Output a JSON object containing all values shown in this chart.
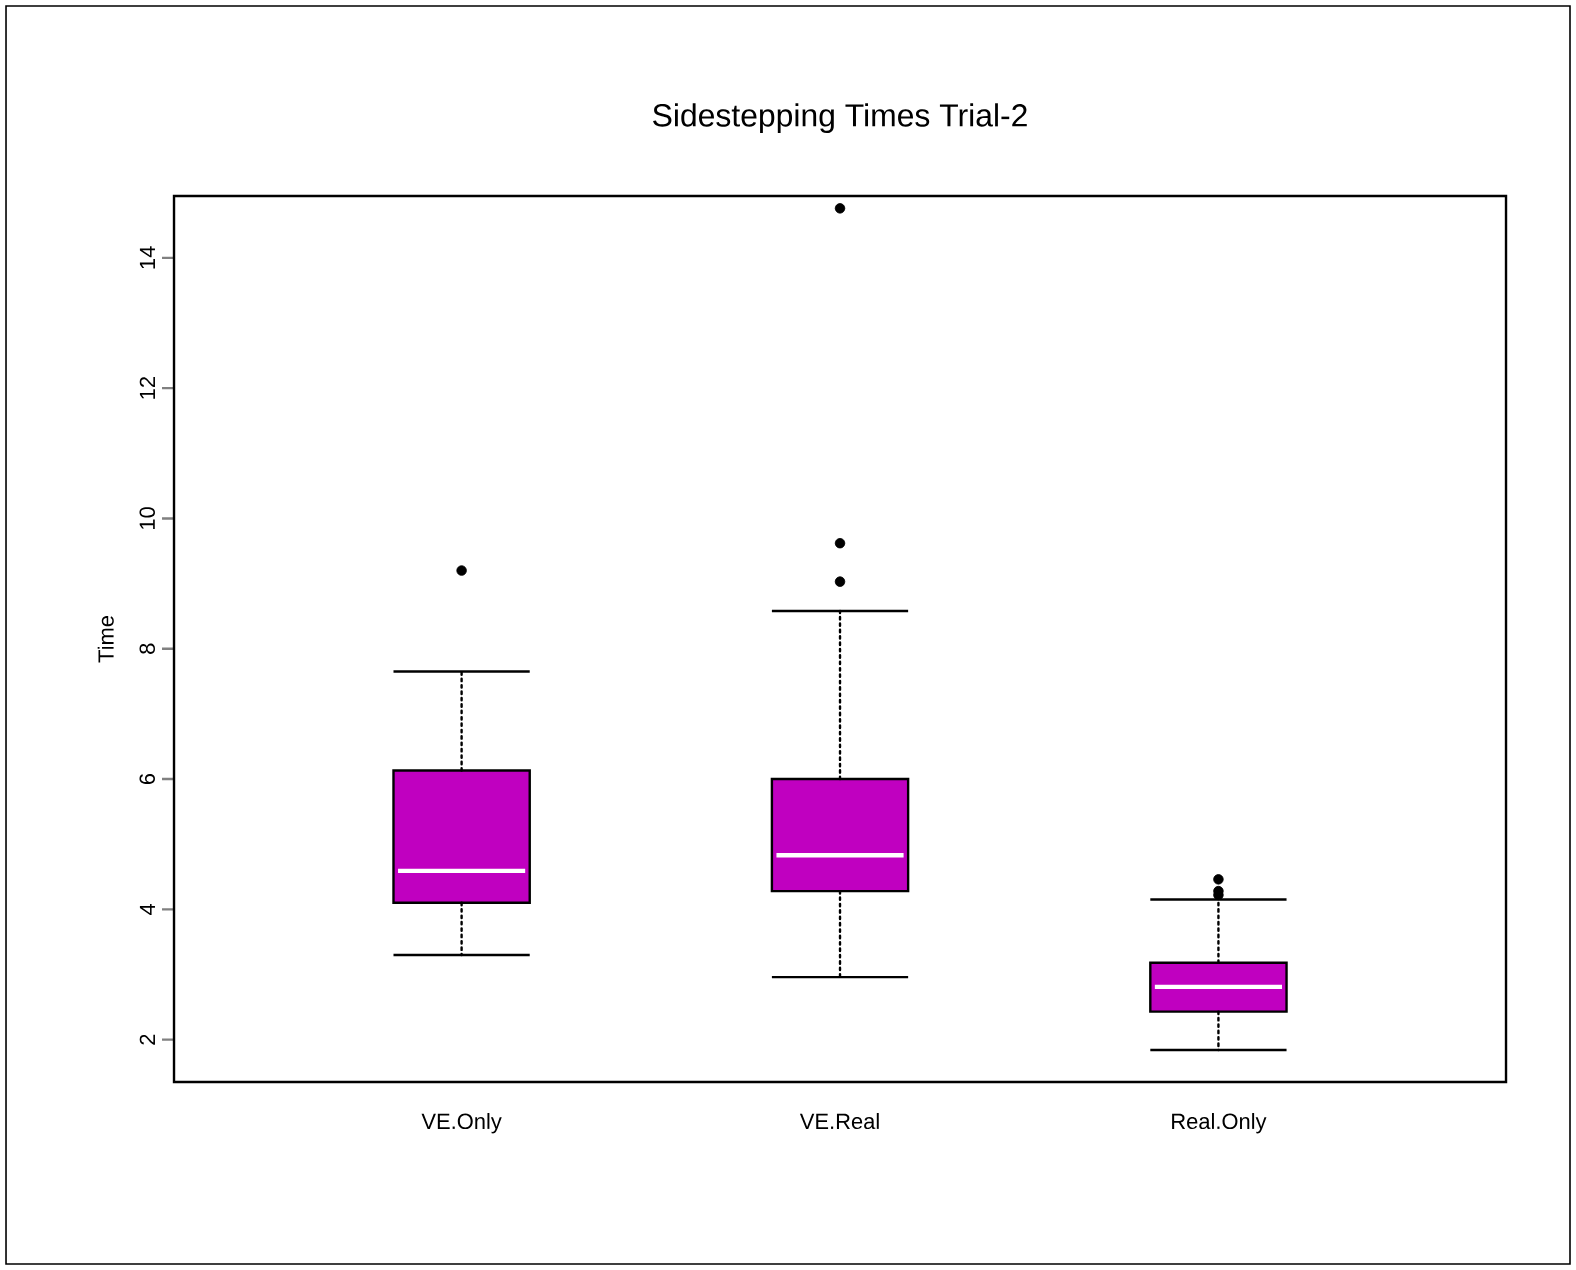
{
  "chart_data": {
    "type": "box",
    "title": "Sidestepping Times Trial-2",
    "ylabel": "Time",
    "categories": [
      "VE.Only",
      "VE.Real",
      "Real.Only"
    ],
    "color": "#c000c0",
    "boxes": [
      {
        "low": 3.3,
        "q1": 4.1,
        "median": 4.59,
        "q3": 6.13,
        "high": 7.65,
        "outliers": [
          9.2
        ]
      },
      {
        "low": 2.96,
        "q1": 4.28,
        "median": 4.83,
        "q3": 6.0,
        "high": 8.58,
        "outliers": [
          9.03,
          9.62,
          14.76
        ]
      },
      {
        "low": 1.84,
        "q1": 2.43,
        "median": 2.81,
        "q3": 3.18,
        "high": 4.15,
        "outliers": [
          4.22,
          4.28,
          4.46
        ]
      }
    ],
    "ylim": [
      1.35,
      14.95
    ],
    "yticks": [
      2,
      4,
      6,
      8,
      10,
      12,
      14
    ]
  }
}
